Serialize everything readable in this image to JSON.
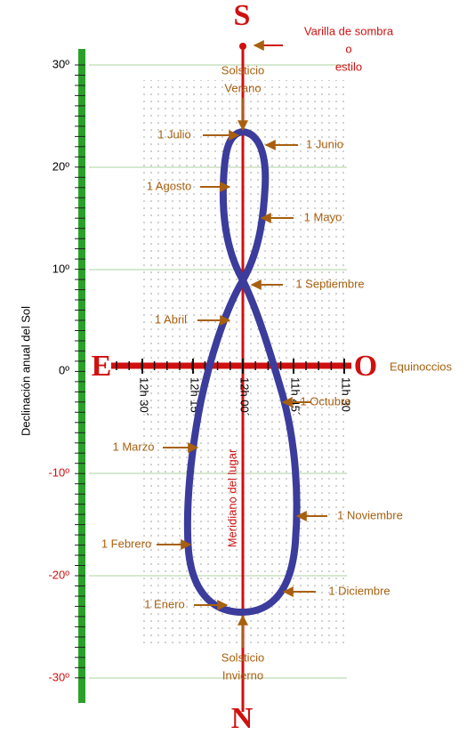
{
  "stylus": [
    "Varilla de sombra",
    "o",
    "estilo"
  ],
  "cardinal": {
    "south": "S",
    "north": "N",
    "east": "E",
    "west": "O"
  },
  "y_axis": {
    "title": "Declinación anual del Sol",
    "ticks": [
      "30º",
      "20º",
      "10º",
      "0º",
      "-10º",
      "-20º",
      "-30º"
    ]
  },
  "hour_ticks": [
    "12h 30´",
    "12h 15´",
    "12h 00´",
    "11h 45´",
    "11h 30"
  ],
  "equinox": "Equinoccios",
  "meridian": "Meridiano del lugar",
  "solstices": {
    "summer": [
      "Solsticio",
      "Verano"
    ],
    "winter": [
      "Solsticio",
      "Invierno"
    ]
  },
  "dates": [
    "1 Julio",
    "1 Junio",
    "1 Agosto",
    "1 Mayo",
    "1 Septiembre",
    "1 Abril",
    "1 Octubre",
    "1 Marzo",
    "1 Noviembre",
    "1 Febrero",
    "1 Diciembre",
    "1 Enero"
  ]
}
